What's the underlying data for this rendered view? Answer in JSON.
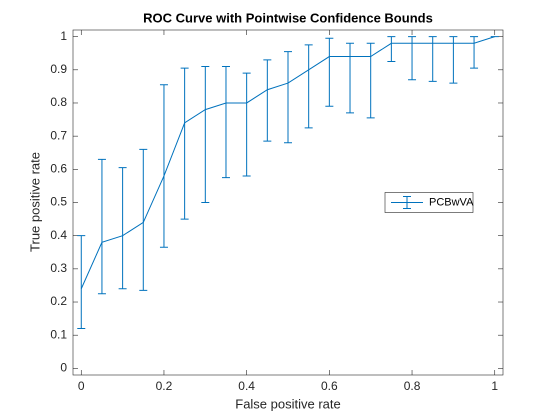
{
  "chart_data": {
    "type": "errorbar",
    "title": "ROC Curve with Pointwise Confidence Bounds",
    "xlabel": "False positive rate",
    "ylabel": "True positive rate",
    "x": [
      0,
      0.05,
      0.1,
      0.15,
      0.2,
      0.25,
      0.3,
      0.35,
      0.4,
      0.45,
      0.5,
      0.55,
      0.6,
      0.65,
      0.7,
      0.75,
      0.8,
      0.85,
      0.9,
      0.95,
      1
    ],
    "series": [
      {
        "name": "PCBwVA",
        "color": "#0072bd",
        "values": [
          0.24,
          0.38,
          0.4,
          0.44,
          0.58,
          0.74,
          0.78,
          0.8,
          0.8,
          0.84,
          0.86,
          0.9,
          0.94,
          0.94,
          0.94,
          0.98,
          0.98,
          0.98,
          0.98,
          0.98,
          1
        ],
        "lower": [
          0.12,
          0.225,
          0.24,
          0.235,
          0.365,
          0.45,
          0.5,
          0.575,
          0.58,
          0.685,
          0.68,
          0.725,
          0.79,
          0.77,
          0.755,
          0.925,
          0.87,
          0.865,
          0.86,
          0.905,
          1
        ],
        "upper": [
          0.4,
          0.63,
          0.605,
          0.66,
          0.855,
          0.905,
          0.91,
          0.91,
          0.89,
          0.93,
          0.955,
          0.975,
          0.995,
          0.98,
          0.98,
          1,
          1,
          1,
          1,
          1,
          1
        ]
      }
    ],
    "xlim": [
      -0.02,
      1.02
    ],
    "ylim": [
      -0.02,
      1.02
    ],
    "xticks": [
      0,
      0.2,
      0.4,
      0.6,
      0.8,
      1
    ],
    "yticks": [
      0,
      0.1,
      0.2,
      0.3,
      0.4,
      0.5,
      0.6,
      0.7,
      0.8,
      0.9,
      1
    ],
    "legend": "east"
  }
}
